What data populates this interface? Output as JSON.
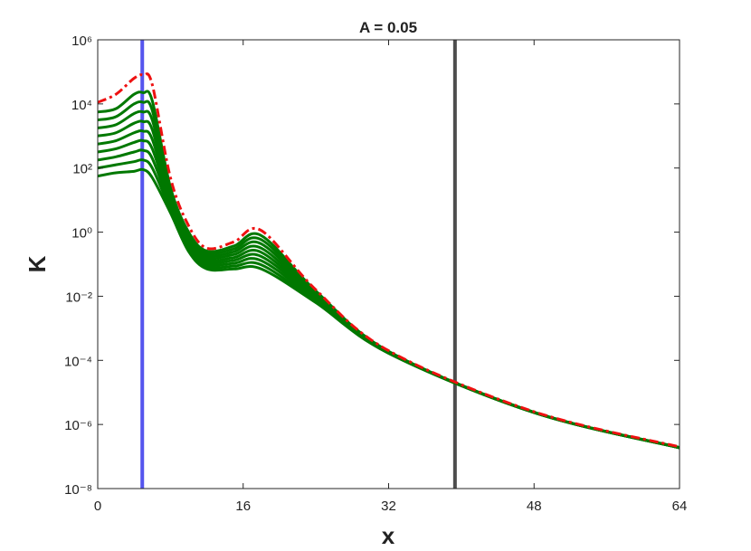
{
  "chart_data": {
    "type": "line",
    "title": "A = 0.05",
    "xlabel": "x",
    "ylabel": "K",
    "x": [
      0,
      2,
      4,
      5,
      6,
      8,
      10,
      12,
      15,
      18,
      24,
      32,
      48,
      64
    ],
    "xlim": [
      0,
      64
    ],
    "xticks": [
      0,
      16,
      32,
      48,
      64
    ],
    "ylim": [
      1e-08,
      1000000.0
    ],
    "yscale": "log",
    "yticks": [
      {
        "value": 1e-08,
        "label": "10⁻⁸"
      },
      {
        "value": 1e-06,
        "label": "10⁻⁶"
      },
      {
        "value": 0.0001,
        "label": "10⁻⁴"
      },
      {
        "value": 0.01,
        "label": "10⁻²"
      },
      {
        "value": 1,
        "label": "10⁰"
      },
      {
        "value": 100,
        "label": "10²"
      },
      {
        "value": 10000,
        "label": "10⁴"
      },
      {
        "value": 1000000,
        "label": "10⁶"
      }
    ],
    "vlines": [
      {
        "x": 4.9,
        "color": "#5555ee"
      },
      {
        "x": 39.3,
        "color": "#4d4d4d"
      }
    ],
    "series": [
      {
        "color": "#007800",
        "line_style": "solid",
        "values": [
          56,
          71,
          79,
          89,
          50,
          4.0,
          0.25,
          0.071,
          0.071,
          0.071,
          0.0063,
          0.000166,
          2.34e-06,
          1.86e-07
        ]
      },
      {
        "color": "#007800",
        "line_style": "solid",
        "values": [
          100,
          126,
          158,
          178,
          100,
          5.0,
          0.299,
          0.083,
          0.087,
          0.095,
          0.007,
          0.000169,
          2.35e-06,
          1.87e-07
        ]
      },
      {
        "color": "#007800",
        "line_style": "solid",
        "values": [
          178,
          224,
          316,
          355,
          200,
          6.3,
          0.355,
          0.098,
          0.107,
          0.129,
          0.0078,
          0.000172,
          2.36e-06,
          1.87e-07
        ]
      },
      {
        "color": "#007800",
        "line_style": "solid",
        "values": [
          316,
          398,
          630,
          710,
          400,
          7.9,
          0.42,
          0.115,
          0.132,
          0.174,
          0.0086,
          0.000175,
          2.37e-06,
          1.88e-07
        ]
      },
      {
        "color": "#007800",
        "line_style": "solid",
        "values": [
          560,
          710,
          1260,
          1410,
          790,
          10,
          0.5,
          0.135,
          0.162,
          0.234,
          0.0095,
          0.000178,
          2.37e-06,
          1.88e-07
        ]
      },
      {
        "color": "#007800",
        "line_style": "solid",
        "values": [
          1000,
          1260,
          2500,
          2800,
          1580,
          12.6,
          0.6,
          0.158,
          0.2,
          0.316,
          0.0106,
          0.000181,
          2.38e-06,
          1.89e-07
        ]
      },
      {
        "color": "#007800",
        "line_style": "solid",
        "values": [
          1780,
          2240,
          5000,
          5600,
          3160,
          15.8,
          0.71,
          0.186,
          0.245,
          0.43,
          0.0117,
          0.000184,
          2.39e-06,
          1.9e-07
        ]
      },
      {
        "color": "#007800",
        "line_style": "solid",
        "values": [
          3160,
          3980,
          10000,
          11200,
          6300,
          20,
          0.84,
          0.219,
          0.3,
          0.58,
          0.013,
          0.000187,
          2.39e-06,
          1.9e-07
        ]
      },
      {
        "color": "#007800",
        "line_style": "solid",
        "values": [
          5600,
          7100,
          20000,
          22400,
          12600,
          25,
          1.0,
          0.257,
          0.37,
          0.78,
          0.0145,
          0.000191,
          2.4e-06,
          1.91e-07
        ]
      },
      {
        "color": "#ee1111",
        "line_style": "dash-dot",
        "values": [
          11200,
          20000,
          63000,
          79000,
          40000,
          50,
          1.58,
          0.316,
          0.5,
          1.12,
          0.0158,
          0.0002,
          2.5e-06,
          2e-07
        ]
      }
    ]
  }
}
